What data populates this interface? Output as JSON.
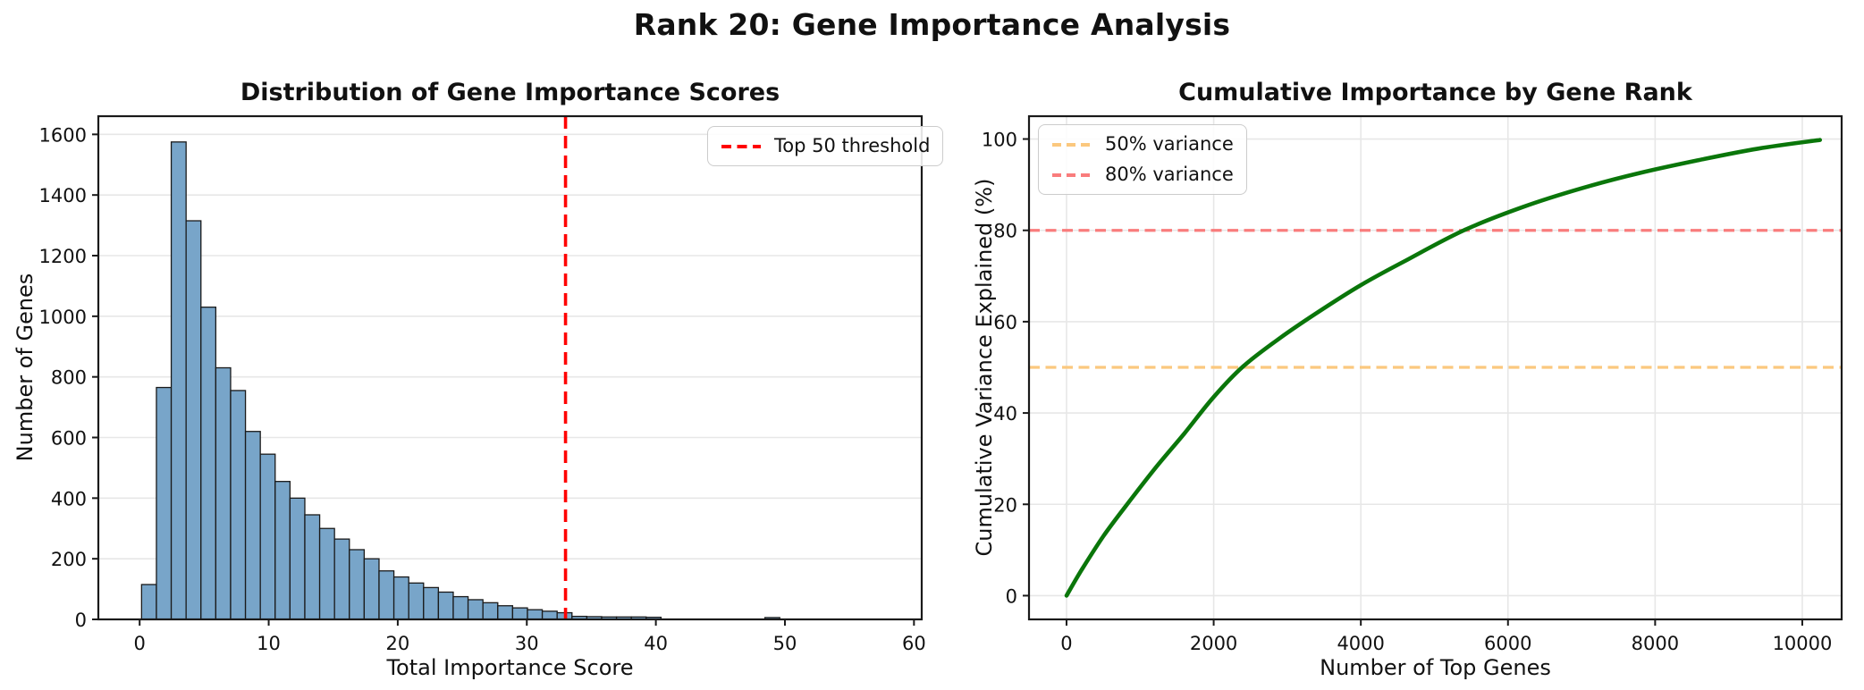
{
  "figure": {
    "title": "Rank 20: Gene Importance Analysis"
  },
  "colors": {
    "background": "#ffffff",
    "spine": "#1a1a1a",
    "grid": "#e7e7e7",
    "tick_label": "#111111",
    "bar_fill": "#78a5c9",
    "bar_edge": "#1a1a1a",
    "threshold_red": "#ff0000",
    "curve_green": "#0a760a",
    "hline_orange": "#fbc87e",
    "hline_red": "#f97c7c"
  },
  "chart_data": [
    {
      "type": "bar",
      "title": "Distribution of Gene Importance Scores",
      "xlabel": "Total Importance Score",
      "ylabel": "Number of Genes",
      "xlim": [
        -3.2,
        60.6
      ],
      "ylim": [
        0,
        1660
      ],
      "xticks": [
        0,
        10,
        20,
        30,
        40,
        50,
        60
      ],
      "yticks": [
        0,
        200,
        400,
        600,
        800,
        1000,
        1200,
        1400,
        1600
      ],
      "grid": "y",
      "bins": {
        "start": 0.15,
        "width": 1.15
      },
      "counts": [
        115,
        765,
        1575,
        1315,
        1030,
        830,
        755,
        620,
        545,
        455,
        400,
        345,
        300,
        265,
        230,
        200,
        160,
        140,
        120,
        105,
        90,
        75,
        65,
        55,
        45,
        38,
        32,
        27,
        22,
        10,
        9,
        8,
        8,
        8,
        7,
        0,
        0,
        0,
        0,
        0,
        0,
        0,
        6
      ],
      "bar_color": "#78a5c9",
      "bar_edge": "#1a1a1a",
      "vline": {
        "x": 33.0,
        "color": "#ff0000",
        "label": "Top 50 threshold"
      },
      "legend": [
        {
          "label": "Top 50 threshold",
          "color": "#ff0000"
        }
      ],
      "legend_position": "top-right"
    },
    {
      "type": "line",
      "title": "Cumulative Importance by Gene Rank",
      "xlabel": "Number of Top Genes",
      "ylabel": "Cumulative Variance Explained (%)",
      "xlim": [
        -510,
        10535
      ],
      "ylim": [
        -5.2,
        105
      ],
      "xticks": [
        0,
        2000,
        4000,
        6000,
        8000,
        10000
      ],
      "yticks": [
        0,
        20,
        40,
        60,
        80,
        100
      ],
      "grid": "both",
      "series": [
        {
          "name": "Cumulative variance explained",
          "color": "#0a760a",
          "x": [
            0,
            200,
            500,
            800,
            1200,
            1600,
            2000,
            2400,
            2900,
            3400,
            4000,
            4600,
            5400,
            6200,
            7000,
            7800,
            8600,
            9400,
            10240
          ],
          "y": [
            0,
            5.5,
            13,
            19.5,
            27.8,
            35.5,
            43.5,
            50.2,
            56.4,
            61.9,
            68,
            73.3,
            80,
            85.1,
            89.2,
            92.6,
            95.4,
            97.9,
            99.8
          ]
        }
      ],
      "hlines": [
        {
          "y": 50,
          "color": "#fbc87e",
          "label": "50% variance"
        },
        {
          "y": 80,
          "color": "#f97c7c",
          "label": "80% variance"
        }
      ],
      "legend": [
        {
          "label": "50% variance",
          "color": "#fbc87e"
        },
        {
          "label": "80% variance",
          "color": "#f97c7c"
        }
      ],
      "legend_position": "top-left"
    }
  ]
}
